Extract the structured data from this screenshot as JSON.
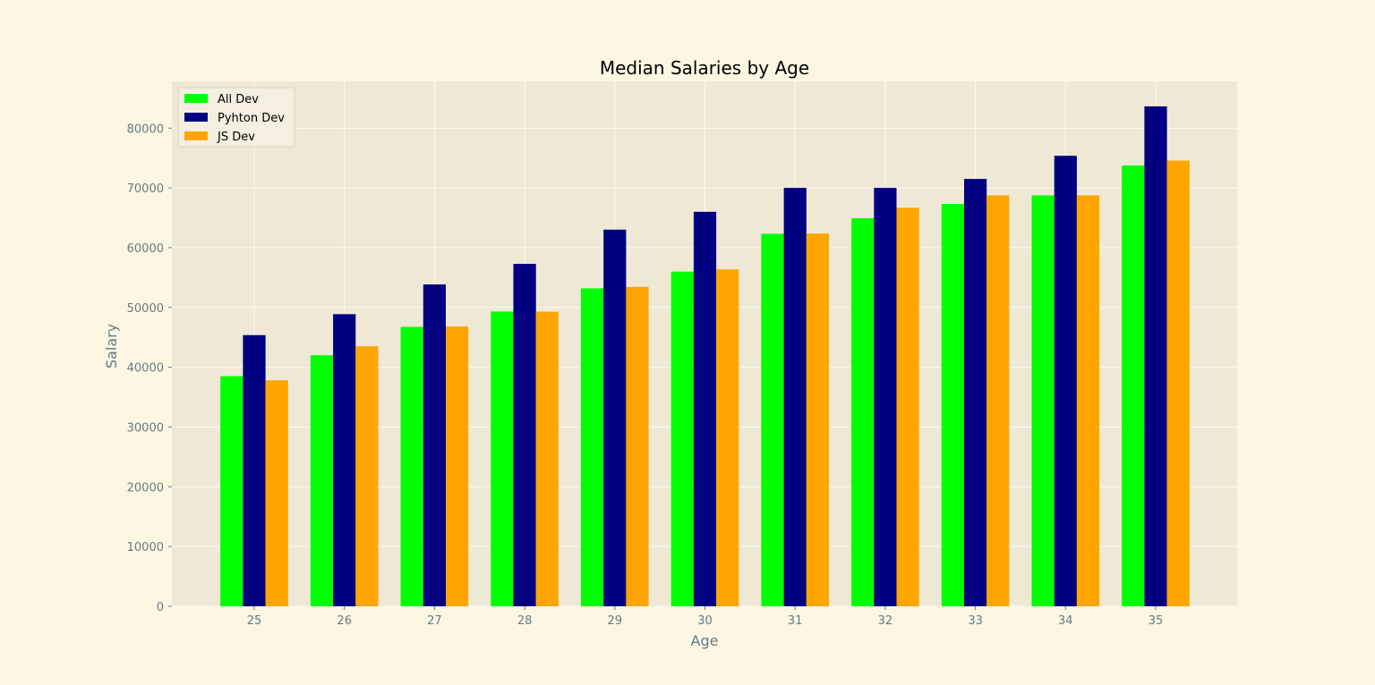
{
  "chart_data": {
    "type": "bar",
    "title": "Median Salaries by Age",
    "xlabel": "Age",
    "ylabel": "Salary",
    "categories": [
      "25",
      "26",
      "27",
      "28",
      "29",
      "30",
      "31",
      "32",
      "33",
      "34",
      "35"
    ],
    "series": [
      {
        "name": "All Dev",
        "color": "#00ff00",
        "values": [
          38496,
          42000,
          46752,
          49320,
          53200,
          56000,
          62316,
          64928,
          67317,
          68748,
          73752
        ]
      },
      {
        "name": "Pyhton Dev",
        "color": "#000080",
        "values": [
          45372,
          48876,
          53850,
          57287,
          63016,
          65998,
          70003,
          70000,
          71496,
          75370,
          83640
        ]
      },
      {
        "name": "JS Dev",
        "color": "#ffa500",
        "values": [
          37810,
          43515,
          46823,
          49293,
          53437,
          56373,
          62375,
          66674,
          68745,
          68746,
          74583
        ]
      }
    ],
    "yticks": [
      0,
      10000,
      20000,
      30000,
      40000,
      50000,
      60000,
      70000,
      80000
    ],
    "ylim": [
      0,
      87822
    ],
    "grid": true,
    "legend_position": "top-left",
    "colors": {
      "figure_background": "#fdf6e3",
      "plot_background": "#eee8d5",
      "grid": "#fdfaf2",
      "tick_label": "#657b83",
      "title": "#000000"
    }
  }
}
